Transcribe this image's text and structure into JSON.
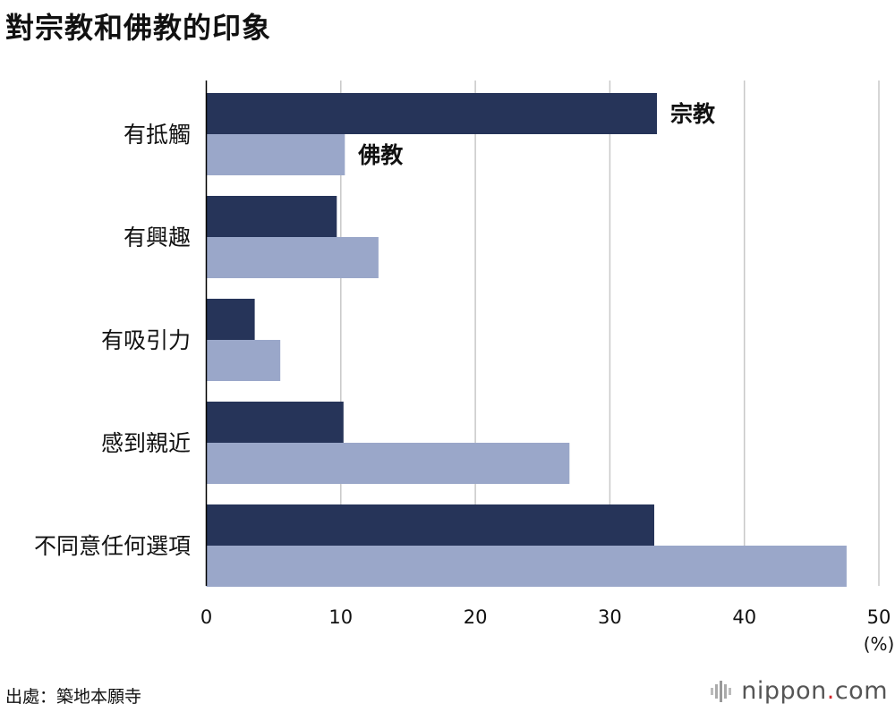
{
  "title": "對宗教和佛教的印象",
  "source": "出處：築地本願寺",
  "brand": {
    "name": "nippon",
    "dot": ".",
    "tld": "com",
    "icon": "nippon-logo-icon"
  },
  "colors": {
    "religion": "#263459",
    "buddhism": "#9aa7c9",
    "grid": "#c8c8c8",
    "axis": "#000000"
  },
  "chart_data": {
    "type": "bar",
    "orientation": "horizontal",
    "categories": [
      "有抵觸",
      "有興趣",
      "有吸引力",
      "感到親近",
      "不同意任何選項"
    ],
    "series": [
      {
        "name": "宗教",
        "values": [
          33.5,
          9.7,
          3.6,
          10.2,
          33.3
        ]
      },
      {
        "name": "佛教",
        "values": [
          10.3,
          12.8,
          5.5,
          27.0,
          47.6
        ]
      }
    ],
    "xlim": [
      0,
      50
    ],
    "xticks": [
      "0",
      "10",
      "20",
      "30",
      "40",
      "50"
    ],
    "xunit": "(%)",
    "grid": true,
    "legend": "inline labels beside first category bars"
  }
}
